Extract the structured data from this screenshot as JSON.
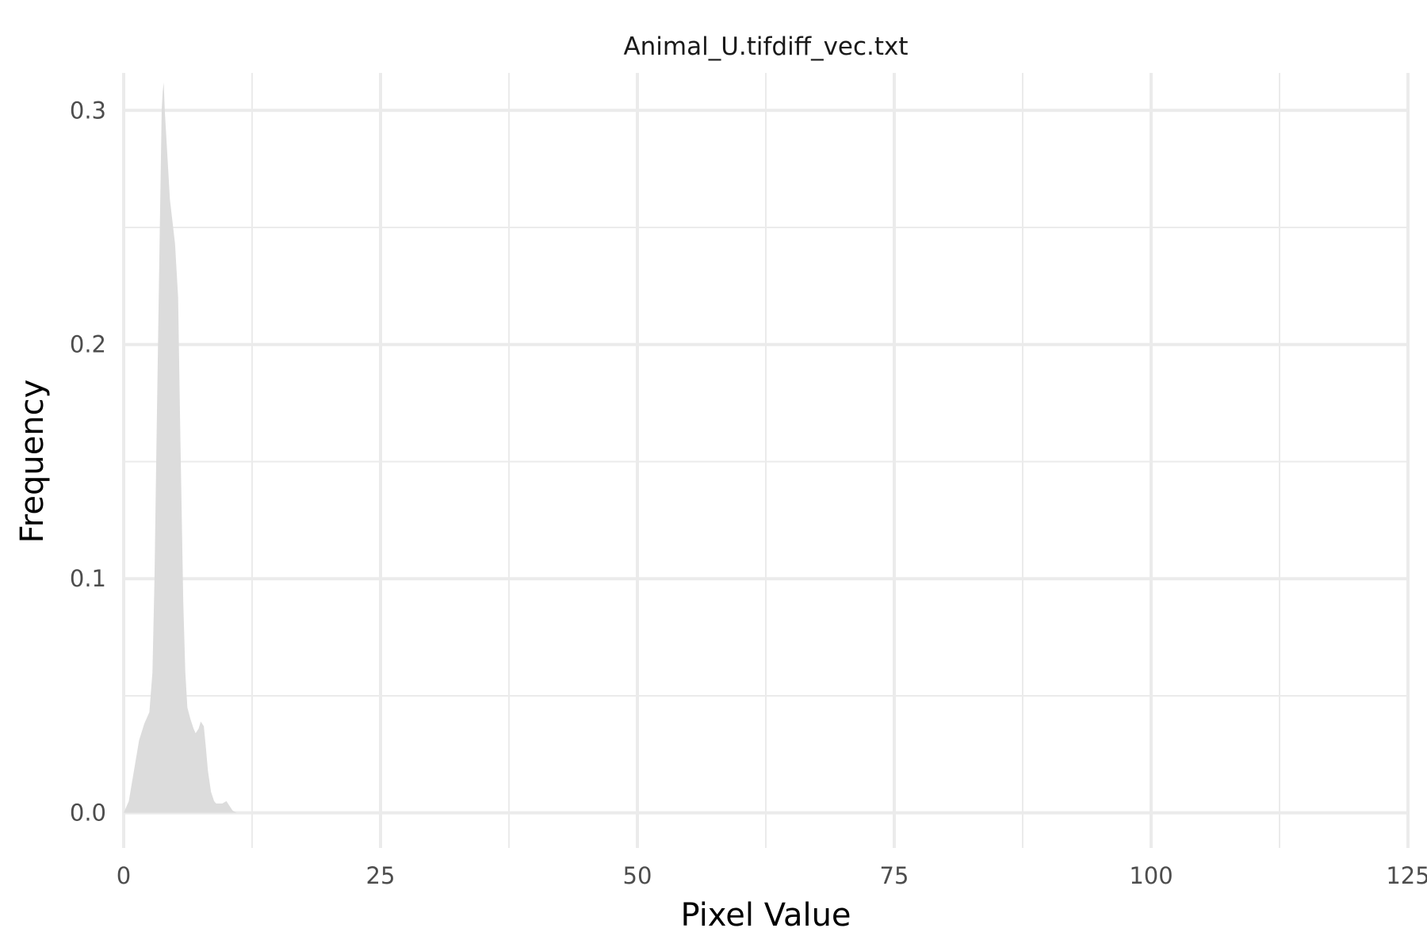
{
  "chart_data": {
    "type": "area",
    "title": "Animal_U.tifdiff_vec.txt",
    "xlabel": "Pixel Value",
    "ylabel": "Frequency",
    "xlim": [
      0,
      125
    ],
    "ylim": [
      -0.015,
      0.316
    ],
    "x_ticks": [
      0,
      25,
      50,
      75,
      100,
      125
    ],
    "x_tick_labels": [
      "0",
      "25",
      "50",
      "75",
      "100",
      "125"
    ],
    "y_ticks": [
      0.0,
      0.1,
      0.2,
      0.3
    ],
    "y_tick_labels": [
      "0.0",
      "0.1",
      "0.2",
      "0.3"
    ],
    "grid": true,
    "legend": "none",
    "fill_color": "#dcdcdc",
    "series": [
      {
        "x": [
          0.0,
          0.5,
          1.0,
          1.5,
          2.0,
          2.5,
          2.8,
          3.0,
          3.2,
          3.5,
          3.7,
          3.8,
          3.9,
          4.0,
          4.5,
          5.0,
          5.3,
          5.5,
          5.8,
          6.0,
          6.2,
          6.5,
          6.8,
          7.0,
          7.3,
          7.5,
          7.8,
          8.0,
          8.2,
          8.5,
          8.8,
          9.0,
          9.3,
          9.6,
          10.0,
          10.3,
          10.6,
          11.0,
          11.5,
          12.0
        ],
        "y": [
          0.0,
          0.005,
          0.018,
          0.031,
          0.038,
          0.043,
          0.06,
          0.1,
          0.16,
          0.245,
          0.3,
          0.308,
          0.312,
          0.3,
          0.262,
          0.243,
          0.22,
          0.165,
          0.09,
          0.06,
          0.045,
          0.04,
          0.036,
          0.034,
          0.036,
          0.039,
          0.037,
          0.028,
          0.018,
          0.009,
          0.005,
          0.004,
          0.004,
          0.004,
          0.005,
          0.003,
          0.001,
          0.0,
          0.0,
          0.0
        ]
      }
    ]
  }
}
